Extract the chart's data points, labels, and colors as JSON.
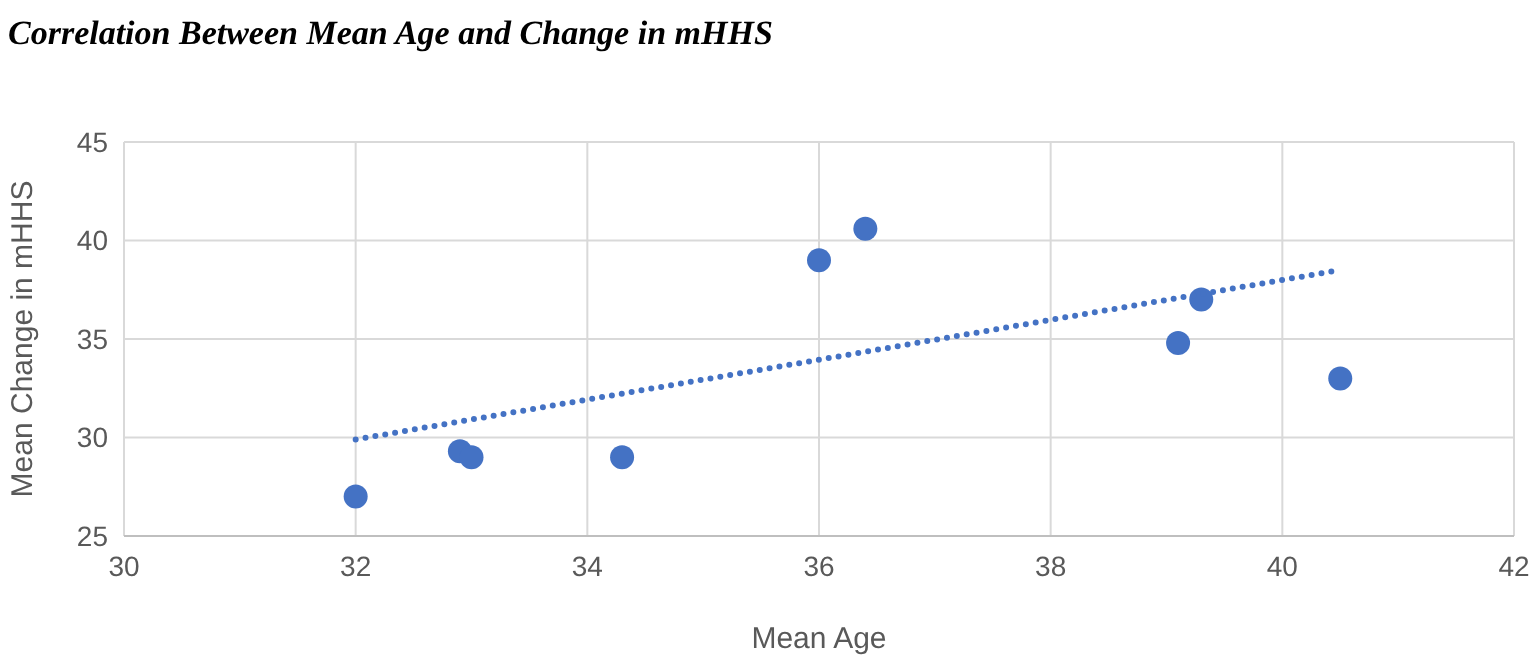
{
  "chart_data": {
    "type": "scatter",
    "title": "Correlation Between Mean Age and Change in mHHS",
    "xlabel": "Mean Age",
    "ylabel": "Mean Change in mHHS",
    "xlim": [
      30,
      42
    ],
    "xticks": [
      30,
      32,
      34,
      36,
      38,
      40,
      42
    ],
    "ylim": [
      25,
      45
    ],
    "yticks": [
      25,
      30,
      35,
      40,
      45
    ],
    "grid": true,
    "marker": "circle",
    "series": [
      {
        "color": "#4472c4",
        "x": [
          32,
          32.9,
          33,
          34.3,
          36,
          36.4,
          39.1,
          39.3,
          40.5
        ],
        "values": [
          27,
          29.3,
          29,
          29,
          39,
          40.6,
          34.8,
          37,
          33
        ]
      },
      {
        "type": "line",
        "color": "#4472c4",
        "line_style": "dotted",
        "marker": "none",
        "x": [
          32,
          40.5
        ],
        "values": [
          29.9,
          38.5
        ]
      }
    ]
  }
}
